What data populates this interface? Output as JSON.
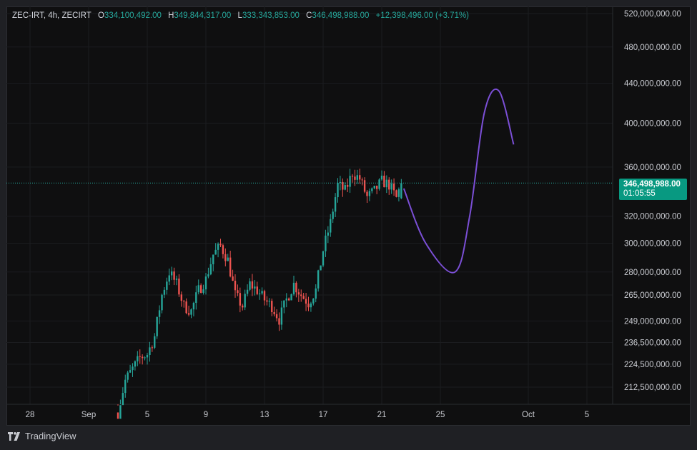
{
  "header": {
    "symbol": "ZEC-IRT, 4h, ZECIRT",
    "open_label": "O",
    "open": "334,100,492.00",
    "high_label": "H",
    "high": "349,844,317.00",
    "low_label": "L",
    "low": "333,343,853.00",
    "close_label": "C",
    "close": "346,498,988.00",
    "change": "+12,398,496.00 (+3.71%)"
  },
  "last_price": {
    "value": "346,498,988.00",
    "countdown": "01:05:55",
    "color": "#089981"
  },
  "footer": {
    "brand": "TradingView"
  },
  "colors": {
    "up": "#26a69a",
    "down": "#ef5350",
    "projection": "#7b4fd6",
    "background": "#0f0f10"
  },
  "chart_data": {
    "type": "candlestick",
    "timeframe": "4h",
    "y_scale": "log",
    "y_tick_labels": [
      "520,000,000.00",
      "480,000,000.00",
      "440,000,000.00",
      "400,000,000.00",
      "360,000,000.00",
      "320,000,000.00",
      "300,000,000.00",
      "280,000,000.00",
      "265,000,000.00",
      "249,000,000.00",
      "236,500,000.00",
      "224,500,000.00",
      "212,500,000.00"
    ],
    "y_ticks": [
      520000000,
      480000000,
      440000000,
      400000000,
      360000000,
      320000000,
      300000000,
      280000000,
      265000000,
      249000000,
      236500000,
      224500000,
      212500000
    ],
    "x_tick_labels": [
      "28",
      "Sep",
      "5",
      "9",
      "13",
      "17",
      "21",
      "25",
      "Oct",
      "5"
    ],
    "x_ticks": [
      "2025-08-28",
      "2025-09-01",
      "2025-09-05",
      "2025-09-09",
      "2025-09-13",
      "2025-09-17",
      "2025-09-21",
      "2025-09-25",
      "2025-10-01",
      "2025-10-05"
    ],
    "grid": true,
    "last_value": 346498988,
    "price_path": [
      [
        "2025-09-03T00:00",
        200000000
      ],
      [
        "2025-09-03T12:00",
        216000000
      ],
      [
        "2025-09-04T00:00",
        222000000
      ],
      [
        "2025-09-04T12:00",
        228000000
      ],
      [
        "2025-09-05T00:00",
        230000000
      ],
      [
        "2025-09-05T12:00",
        240000000
      ],
      [
        "2025-09-06T00:00",
        265000000
      ],
      [
        "2025-09-06T12:00",
        280000000
      ],
      [
        "2025-09-07T00:00",
        272000000
      ],
      [
        "2025-09-07T12:00",
        258000000
      ],
      [
        "2025-09-08T00:00",
        255000000
      ],
      [
        "2025-09-08T12:00",
        268000000
      ],
      [
        "2025-09-09T00:00",
        275000000
      ],
      [
        "2025-09-09T12:00",
        292000000
      ],
      [
        "2025-09-10T00:00",
        298000000
      ],
      [
        "2025-09-10T12:00",
        288000000
      ],
      [
        "2025-09-11T00:00",
        265000000
      ],
      [
        "2025-09-11T12:00",
        258000000
      ],
      [
        "2025-09-12T00:00",
        272000000
      ],
      [
        "2025-09-12T12:00",
        268000000
      ],
      [
        "2025-09-13T00:00",
        262000000
      ],
      [
        "2025-09-13T12:00",
        258000000
      ],
      [
        "2025-09-14T00:00",
        250000000
      ],
      [
        "2025-09-14T12:00",
        262000000
      ],
      [
        "2025-09-15T00:00",
        272000000
      ],
      [
        "2025-09-15T12:00",
        265000000
      ],
      [
        "2025-09-16T00:00",
        260000000
      ],
      [
        "2025-09-16T12:00",
        268000000
      ],
      [
        "2025-09-17T00:00",
        295000000
      ],
      [
        "2025-09-17T12:00",
        315000000
      ],
      [
        "2025-09-18T00:00",
        345000000
      ],
      [
        "2025-09-18T12:00",
        340000000
      ],
      [
        "2025-09-19T00:00",
        355000000
      ],
      [
        "2025-09-19T12:00",
        350000000
      ],
      [
        "2025-09-20T00:00",
        335000000
      ],
      [
        "2025-09-20T12:00",
        340000000
      ],
      [
        "2025-09-21T00:00",
        348000000
      ],
      [
        "2025-09-21T12:00",
        345000000
      ],
      [
        "2025-09-22T00:00",
        334100492
      ],
      [
        "2025-09-22T08:00",
        346498988
      ]
    ],
    "projection": [
      [
        "2025-09-22T12:00",
        342000000
      ],
      [
        "2025-09-24T00:00",
        300000000
      ],
      [
        "2025-09-26T00:00",
        280000000
      ],
      [
        "2025-09-27T00:00",
        320000000
      ],
      [
        "2025-09-28T00:00",
        410000000
      ],
      [
        "2025-09-29T00:00",
        432000000
      ],
      [
        "2025-09-30T00:00",
        380000000
      ]
    ]
  }
}
